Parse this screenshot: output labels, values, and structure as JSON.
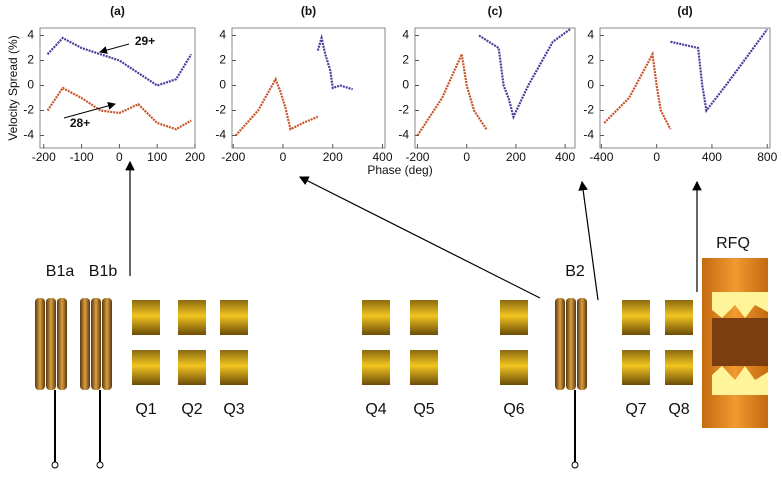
{
  "chart_data": [
    {
      "type": "line",
      "title": "(a)",
      "ylabel": "Velocity Spread (%)",
      "xlim": [
        -210,
        200
      ],
      "xticks": [
        -200,
        -100,
        0,
        100,
        200
      ],
      "ylim": [
        -5,
        4.6
      ],
      "yticks": [
        -4,
        -2,
        0,
        2,
        4
      ],
      "annotations": [
        "29+",
        "28+"
      ],
      "series": [
        {
          "color": "#4b3c9c",
          "x": [
            -190,
            -150,
            -100,
            -50,
            0,
            50,
            100,
            150,
            190
          ],
          "values": [
            2.5,
            3.8,
            3.0,
            2.5,
            2.0,
            1.0,
            0.0,
            0.5,
            2.5
          ]
        },
        {
          "color": "#c8552a",
          "x": [
            -190,
            -150,
            -100,
            -50,
            0,
            50,
            100,
            150,
            190
          ],
          "values": [
            -2.0,
            -0.2,
            -1.0,
            -2.0,
            -2.2,
            -1.5,
            -3.0,
            -3.5,
            -2.8
          ]
        }
      ]
    },
    {
      "type": "line",
      "title": "(b)",
      "xlabel": "Phase  (deg)",
      "xlim": [
        -205,
        410
      ],
      "xticks": [
        -200,
        0,
        200,
        400
      ],
      "ylim": [
        -5,
        4.6
      ],
      "yticks": [
        -4,
        -2,
        0,
        2,
        4
      ],
      "series": [
        {
          "color": "#4b3c9c",
          "x": [
            140,
            155,
            170,
            190,
            200,
            230,
            280
          ],
          "values": [
            2.8,
            3.8,
            2.5,
            1.2,
            -0.2,
            0.0,
            -0.3
          ]
        },
        {
          "color": "#c8552a",
          "x": [
            -190,
            -100,
            -30,
            -10,
            10,
            30,
            80,
            140
          ],
          "values": [
            -4,
            -2,
            0.5,
            -0.5,
            -1.8,
            -3.5,
            -3,
            -2.5
          ]
        }
      ]
    },
    {
      "type": "line",
      "title": "(c)",
      "xlim": [
        -210,
        440
      ],
      "xticks": [
        -200,
        0,
        200,
        400
      ],
      "ylim": [
        -5,
        4.6
      ],
      "yticks": [
        -4,
        -2,
        0,
        2,
        4
      ],
      "series": [
        {
          "color": "#4b3c9c",
          "x": [
            50,
            130,
            150,
            170,
            190,
            250,
            350,
            420
          ],
          "values": [
            4,
            3,
            0,
            -1,
            -2.5,
            0,
            3.5,
            4.5
          ]
        },
        {
          "color": "#c8552a",
          "x": [
            -200,
            -100,
            -20,
            0,
            30,
            80
          ],
          "values": [
            -4,
            -1,
            2.5,
            0,
            -2,
            -3.5
          ]
        }
      ]
    },
    {
      "type": "line",
      "title": "(d)",
      "xlim": [
        -410,
        820
      ],
      "xticks": [
        -400,
        0,
        400,
        800
      ],
      "ylim": [
        -5,
        4.6
      ],
      "yticks": [
        -4,
        -2,
        0,
        2,
        4
      ],
      "series": [
        {
          "color": "#4b3c9c",
          "x": [
            100,
            300,
            330,
            360,
            500,
            700,
            800
          ],
          "values": [
            3.5,
            3,
            0,
            -2,
            0,
            3,
            4.5
          ]
        },
        {
          "color": "#c8552a",
          "x": [
            -380,
            -200,
            -30,
            0,
            30,
            100
          ],
          "values": [
            -3,
            -1,
            2.5,
            0,
            -2,
            -3.5
          ]
        }
      ]
    }
  ],
  "beamline": {
    "dipoles": [
      "B1a",
      "B1b",
      "B2"
    ],
    "rfq": "RFQ",
    "quadrupoles": [
      "Q1",
      "Q2",
      "Q3",
      "Q4",
      "Q5",
      "Q6",
      "Q7",
      "Q8"
    ]
  }
}
